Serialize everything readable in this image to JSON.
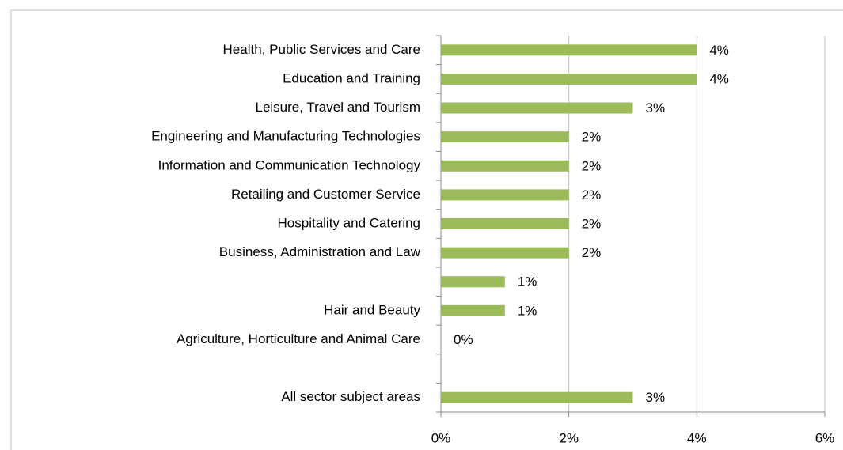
{
  "chart_data": {
    "type": "bar",
    "orientation": "horizontal",
    "categories": [
      "Health, Public Services and Care",
      "Education and Training",
      "Leisure, Travel and Tourism",
      "Engineering and Manufacturing Technologies",
      "Information and Communication Technology",
      "Retailing and Customer Service",
      "Hospitality and Catering",
      "Business, Administration and Law",
      null,
      "Hair and Beauty",
      "Agriculture, Horticulture and Animal Care",
      null,
      "All sector subject areas"
    ],
    "values": [
      4,
      4,
      3,
      2,
      2,
      2,
      2,
      2,
      1,
      1,
      0,
      null,
      3
    ],
    "value_labels": [
      "4%",
      "4%",
      "3%",
      "2%",
      "2%",
      "2%",
      "2%",
      "2%",
      "1%",
      "1%",
      "0%",
      null,
      "3%"
    ],
    "color": "#9bbb59",
    "xlim": [
      0,
      6
    ],
    "xticks": [
      {
        "value": 0,
        "label": "0%"
      },
      {
        "value": 2,
        "label": "2%"
      },
      {
        "value": 4,
        "label": "4%"
      },
      {
        "value": 6,
        "label": "6%"
      }
    ],
    "grid": true
  }
}
